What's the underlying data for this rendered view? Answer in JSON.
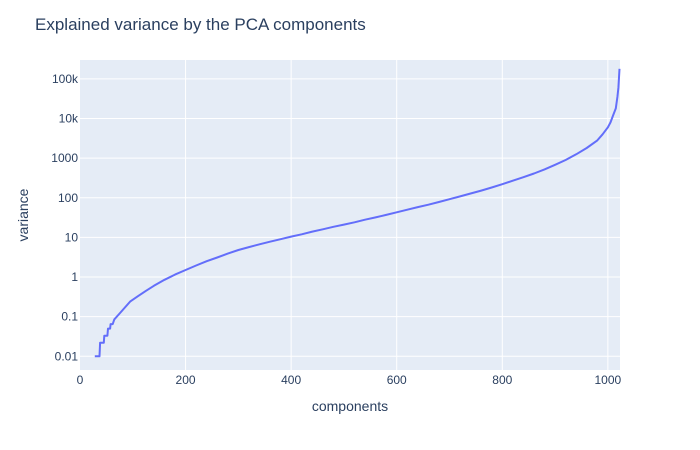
{
  "chart_data": {
    "type": "line",
    "title": "Explained variance by the PCA components",
    "xlabel": "components",
    "ylabel": "variance",
    "xlim": [
      0,
      1023
    ],
    "ylim": [
      0.0045,
      300000
    ],
    "y_scale": "log",
    "grid": true,
    "x_ticks": [
      0,
      200,
      400,
      600,
      800,
      1000
    ],
    "x_tick_labels": [
      "0",
      "200",
      "400",
      "600",
      "800",
      "1000"
    ],
    "y_ticks": [
      0.01,
      0.1,
      1,
      10,
      100,
      1000,
      10000,
      100000
    ],
    "y_tick_labels": [
      "0.01",
      "0.1",
      "1",
      "10",
      "100",
      "1000",
      "10k",
      "100k"
    ],
    "colors": {
      "line": "#636efa",
      "plot_bg": "#e5ecf6",
      "grid": "#ffffff",
      "text": "#2a3f5f"
    },
    "series": [
      {
        "values": [
          [
            28,
            0.01
          ],
          [
            37,
            0.01
          ],
          [
            38,
            0.022
          ],
          [
            45,
            0.022
          ],
          [
            46,
            0.033
          ],
          [
            52,
            0.033
          ],
          [
            53,
            0.05
          ],
          [
            57,
            0.05
          ],
          [
            58,
            0.065
          ],
          [
            62,
            0.065
          ],
          [
            65,
            0.085
          ],
          [
            75,
            0.12
          ],
          [
            85,
            0.17
          ],
          [
            95,
            0.24
          ],
          [
            110,
            0.33
          ],
          [
            125,
            0.45
          ],
          [
            140,
            0.6
          ],
          [
            160,
            0.85
          ],
          [
            180,
            1.15
          ],
          [
            200,
            1.5
          ],
          [
            220,
            1.95
          ],
          [
            240,
            2.5
          ],
          [
            260,
            3.1
          ],
          [
            280,
            3.9
          ],
          [
            300,
            4.8
          ],
          [
            320,
            5.7
          ],
          [
            340,
            6.7
          ],
          [
            360,
            7.8
          ],
          [
            380,
            9
          ],
          [
            400,
            10.5
          ],
          [
            420,
            12
          ],
          [
            440,
            14
          ],
          [
            460,
            16
          ],
          [
            480,
            18.5
          ],
          [
            500,
            21
          ],
          [
            520,
            24
          ],
          [
            540,
            28
          ],
          [
            560,
            32
          ],
          [
            580,
            37
          ],
          [
            600,
            43
          ],
          [
            620,
            50
          ],
          [
            640,
            58
          ],
          [
            660,
            67
          ],
          [
            680,
            78
          ],
          [
            700,
            92
          ],
          [
            720,
            108
          ],
          [
            740,
            128
          ],
          [
            760,
            152
          ],
          [
            780,
            182
          ],
          [
            800,
            220
          ],
          [
            820,
            270
          ],
          [
            840,
            330
          ],
          [
            860,
            410
          ],
          [
            880,
            520
          ],
          [
            900,
            680
          ],
          [
            920,
            900
          ],
          [
            940,
            1250
          ],
          [
            960,
            1800
          ],
          [
            980,
            2800
          ],
          [
            990,
            4000
          ],
          [
            1000,
            6000
          ],
          [
            1005,
            8000
          ],
          [
            1010,
            12000
          ],
          [
            1015,
            18000
          ],
          [
            1018,
            35000
          ],
          [
            1020,
            60000
          ],
          [
            1022,
            180000
          ]
        ]
      }
    ]
  }
}
